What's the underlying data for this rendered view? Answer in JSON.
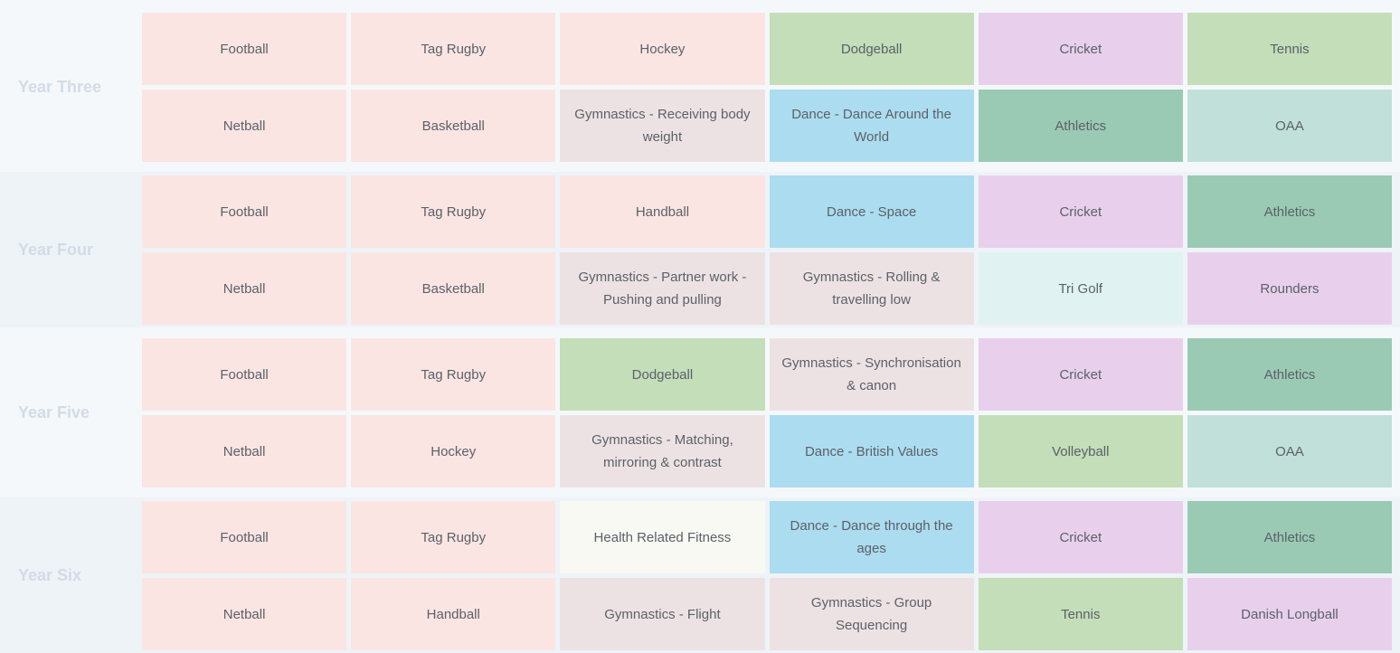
{
  "colors": {
    "pink": "#fbe5e3",
    "green": "#c3deb8",
    "lilac": "#e8d0ec",
    "gymnastics": "#ede2e3",
    "blue": "#acdcef",
    "teal": "#9acab4",
    "mint": "#c1e0da",
    "aqua": "#e0f3f2",
    "cream": "#f8f9f2"
  },
  "years": [
    {
      "label": "Year Three",
      "rows": [
        [
          {
            "text": "Football",
            "color": "pink"
          },
          {
            "text": "Tag Rugby",
            "color": "pink"
          },
          {
            "text": "Hockey",
            "color": "pink"
          },
          {
            "text": "Dodgeball",
            "color": "green"
          },
          {
            "text": "Cricket",
            "color": "lilac"
          },
          {
            "text": "Tennis",
            "color": "green"
          }
        ],
        [
          {
            "text": "Netball",
            "color": "pink"
          },
          {
            "text": "Basketball",
            "color": "pink"
          },
          {
            "text": "Gymnastics - Receiving body weight",
            "color": "gymnastics"
          },
          {
            "text": "Dance - Dance Around the World",
            "color": "blue"
          },
          {
            "text": "Athletics",
            "color": "teal"
          },
          {
            "text": "OAA",
            "color": "mint"
          }
        ]
      ]
    },
    {
      "label": "Year Four",
      "rows": [
        [
          {
            "text": "Football",
            "color": "pink"
          },
          {
            "text": "Tag Rugby",
            "color": "pink"
          },
          {
            "text": "Handball",
            "color": "pink"
          },
          {
            "text": "Dance - Space",
            "color": "blue"
          },
          {
            "text": "Cricket",
            "color": "lilac"
          },
          {
            "text": "Athletics",
            "color": "teal"
          }
        ],
        [
          {
            "text": "Netball",
            "color": "pink"
          },
          {
            "text": "Basketball",
            "color": "pink"
          },
          {
            "text": "Gymnastics - Partner work - Pushing and pulling",
            "color": "gymnastics"
          },
          {
            "text": "Gymnastics - Rolling & travelling low",
            "color": "gymnastics"
          },
          {
            "text": "Tri Golf",
            "color": "aqua"
          },
          {
            "text": "Rounders",
            "color": "lilac"
          }
        ]
      ]
    },
    {
      "label": "Year Five",
      "rows": [
        [
          {
            "text": "Football",
            "color": "pink"
          },
          {
            "text": "Tag Rugby",
            "color": "pink"
          },
          {
            "text": "Dodgeball",
            "color": "green"
          },
          {
            "text": "Gymnastics - Synchronisation & canon",
            "color": "gymnastics"
          },
          {
            "text": "Cricket",
            "color": "lilac"
          },
          {
            "text": "Athletics",
            "color": "teal"
          }
        ],
        [
          {
            "text": "Netball",
            "color": "pink"
          },
          {
            "text": "Hockey",
            "color": "pink"
          },
          {
            "text": "Gymnastics - Matching, mirroring & contrast",
            "color": "gymnastics"
          },
          {
            "text": "Dance - British Values",
            "color": "blue"
          },
          {
            "text": "Volleyball",
            "color": "green"
          },
          {
            "text": "OAA",
            "color": "mint"
          }
        ]
      ]
    },
    {
      "label": "Year Six",
      "rows": [
        [
          {
            "text": "Football",
            "color": "pink"
          },
          {
            "text": "Tag Rugby",
            "color": "pink"
          },
          {
            "text": "Health Related Fitness",
            "color": "cream"
          },
          {
            "text": "Dance - Dance through the ages",
            "color": "blue"
          },
          {
            "text": "Cricket",
            "color": "lilac"
          },
          {
            "text": "Athletics",
            "color": "teal"
          }
        ],
        [
          {
            "text": "Netball",
            "color": "pink"
          },
          {
            "text": "Handball",
            "color": "pink"
          },
          {
            "text": "Gymnastics - Flight",
            "color": "gymnastics"
          },
          {
            "text": "Gymnastics - Group Sequencing",
            "color": "gymnastics"
          },
          {
            "text": "Tennis",
            "color": "green"
          },
          {
            "text": "Danish Longball",
            "color": "lilac"
          }
        ]
      ]
    }
  ]
}
